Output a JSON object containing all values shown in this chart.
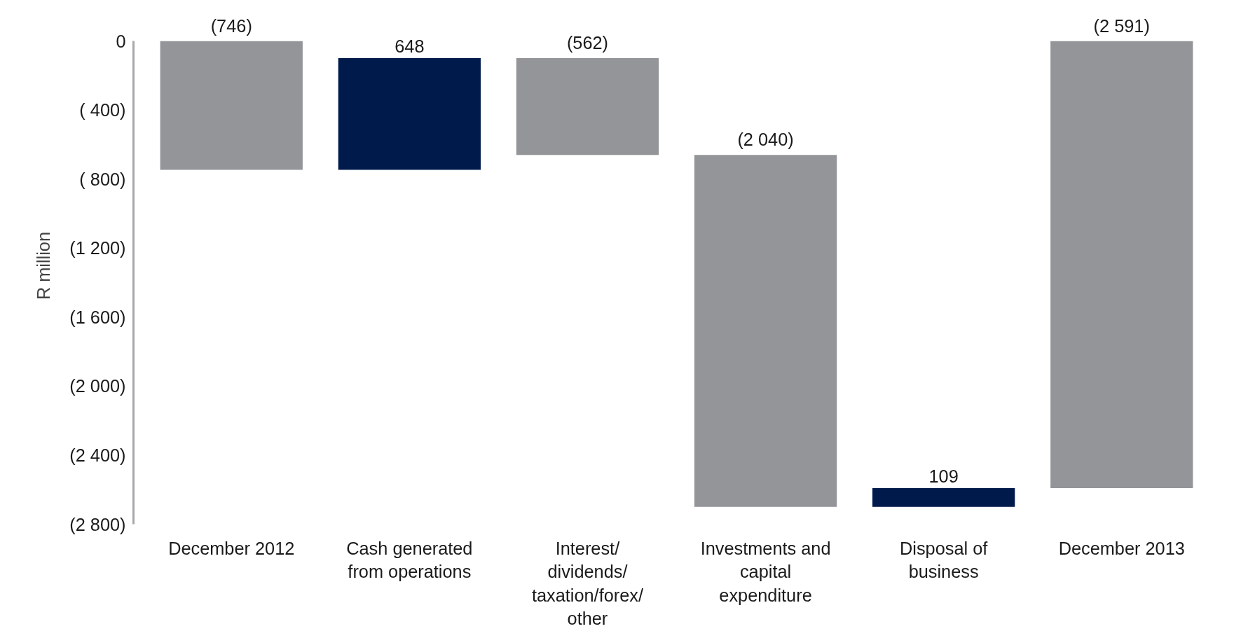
{
  "chart_data": {
    "type": "bar",
    "ylabel": "R million",
    "categories": [
      "December 2012",
      "Cash generated from operations",
      "Interest/dividends/taxation/forex/other",
      "Investments and capital expenditure",
      "Disposal of business",
      "December 2013"
    ],
    "base": [
      0,
      -746,
      -98,
      -660,
      -2700,
      0
    ],
    "values": [
      -746,
      648,
      -562,
      -2040,
      109,
      -2591
    ],
    "colors": [
      "#939598",
      "#001a4b",
      "#939598",
      "#939598",
      "#001a4b",
      "#939598"
    ],
    "value_labels": [
      "(746)",
      "648",
      "(562)",
      "(2 040)",
      "109",
      "(2 591)"
    ],
    "ylim": [
      -2800,
      0
    ],
    "yticks": [
      0,
      {
        "value": -400,
        "label": "( 400)"
      },
      {
        "value": -800,
        "label": "( 800)"
      },
      {
        "value": -1200,
        "label": "(1 200)"
      },
      {
        "value": -1600,
        "label": "(1 600)"
      },
      {
        "value": -2000,
        "label": "(2 000)"
      },
      {
        "value": -2400,
        "label": "(2 400)"
      },
      {
        "value": -2800,
        "label": "(2 800)"
      }
    ],
    "grid": false
  }
}
